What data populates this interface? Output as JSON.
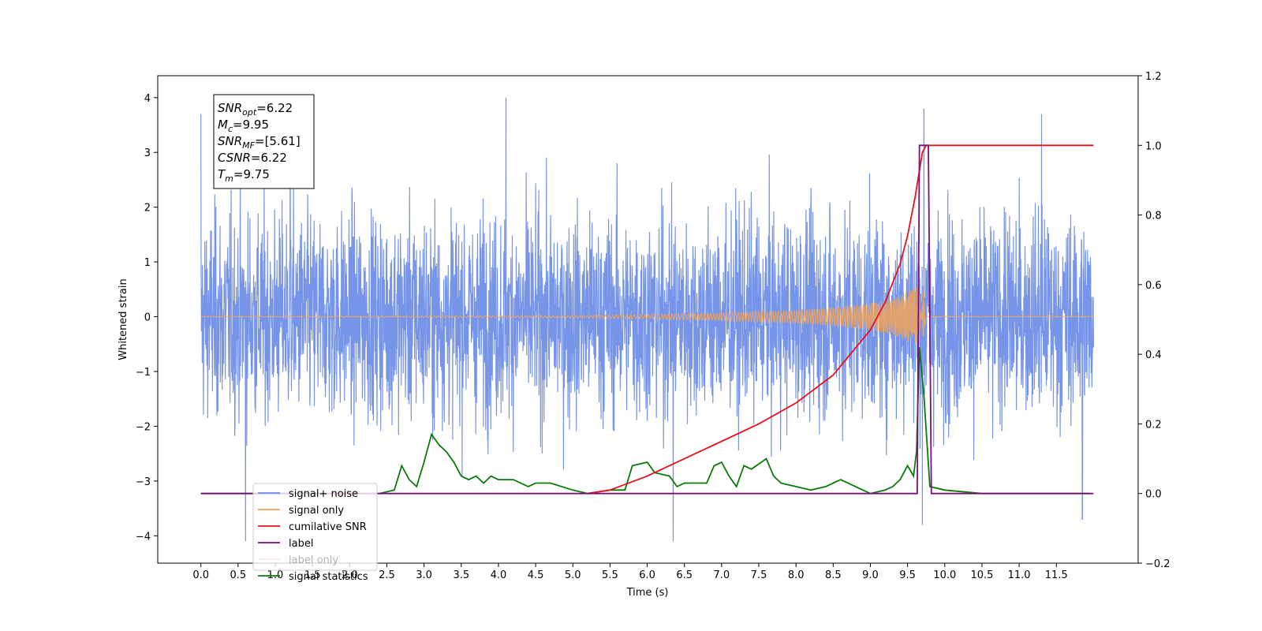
{
  "chart_data": {
    "type": "line",
    "xlabel": "Time (s)",
    "ylabel": "Whitened strain",
    "xlim": [
      -0.58,
      12.6
    ],
    "ylim": [
      -4.5,
      4.4
    ],
    "y2lim": [
      -0.2,
      1.2
    ],
    "x_ticks": [
      0.0,
      0.5,
      1.0,
      1.5,
      2.0,
      2.5,
      3.0,
      3.5,
      4.0,
      4.5,
      5.0,
      5.5,
      6.0,
      6.5,
      7.0,
      7.5,
      8.0,
      8.5,
      9.0,
      9.5,
      10.0,
      10.5,
      11.0,
      11.5
    ],
    "x_tick_labels": [
      "0.0",
      "0.5",
      "1.0",
      "1.5",
      "2.0",
      "2.5",
      "3.0",
      "3.5",
      "4.0",
      "4.5",
      "5.0",
      "5.5",
      "6.0",
      "6.5",
      "7.0",
      "7.5",
      "8.0",
      "8.5",
      "9.0",
      "9.5",
      "10.0",
      "10.5",
      "11.0",
      "11.5"
    ],
    "y_ticks": [
      -4,
      -3,
      -2,
      -1,
      0,
      1,
      2,
      3,
      4
    ],
    "y_tick_labels": [
      "−4",
      "−3",
      "−2",
      "−1",
      "0",
      "1",
      "2",
      "3",
      "4"
    ],
    "y2_ticks": [
      -0.2,
      0.0,
      0.2,
      0.4,
      0.6,
      0.8,
      1.0,
      1.2
    ],
    "y2_tick_labels": [
      "−0.2",
      "0.0",
      "0.2",
      "0.4",
      "0.6",
      "0.8",
      "1.0",
      "1.2"
    ],
    "grid": false,
    "legend_position": "bottom-left",
    "series": [
      {
        "name": "signal+ noise",
        "axis": "left",
        "color": "#6b8ce6",
        "kind": "noise",
        "x_range": [
          0.0,
          12.0
        ],
        "amplitude_typical": 2.1,
        "peaks": [
          [
            0.0,
            3.7
          ],
          [
            0.6,
            -4.1
          ],
          [
            1.2,
            3.6
          ],
          [
            4.1,
            4.0
          ],
          [
            6.35,
            -4.1
          ],
          [
            9.72,
            3.8
          ],
          [
            9.7,
            -3.8
          ],
          [
            11.3,
            3.7
          ],
          [
            11.85,
            -3.7
          ]
        ]
      },
      {
        "name": "signal only",
        "axis": "left",
        "color": "#f0a35a",
        "kind": "chirp",
        "x": [
          0.0,
          5.0,
          6.0,
          7.0,
          8.0,
          8.5,
          9.0,
          9.3,
          9.5,
          9.6,
          9.7,
          9.75
        ],
        "envelope": [
          0.0,
          0.02,
          0.04,
          0.07,
          0.12,
          0.17,
          0.25,
          0.34,
          0.45,
          0.52,
          0.58,
          0.0
        ]
      },
      {
        "name": "cumilative SNR",
        "axis": "right",
        "color": "#e8111b",
        "x": [
          5.2,
          5.5,
          6.0,
          6.5,
          7.0,
          7.5,
          8.0,
          8.5,
          9.0,
          9.2,
          9.4,
          9.5,
          9.6,
          9.7,
          9.75,
          9.8,
          10.5,
          11.0,
          11.5,
          12.0
        ],
        "values": [
          0.0,
          0.01,
          0.05,
          0.1,
          0.15,
          0.2,
          0.26,
          0.34,
          0.47,
          0.55,
          0.66,
          0.74,
          0.85,
          0.98,
          1.0,
          1.0,
          1.0,
          1.0,
          1.0,
          1.0
        ]
      },
      {
        "name": "label",
        "axis": "right",
        "color": "#7b0f7b",
        "x": [
          0.0,
          9.63,
          9.66,
          9.78,
          9.82,
          12.0
        ],
        "values": [
          0.0,
          0.0,
          1.0,
          1.0,
          0.0,
          0.0
        ]
      },
      {
        "name": "label only",
        "axis": "right",
        "color": "#e6a3c4",
        "hidden": true
      },
      {
        "name": "signal statistics",
        "axis": "right",
        "color": "#0a7a0a",
        "x": [
          0.0,
          2.0,
          2.4,
          2.6,
          2.7,
          2.8,
          2.9,
          3.0,
          3.1,
          3.2,
          3.3,
          3.4,
          3.5,
          3.6,
          3.7,
          3.8,
          3.9,
          4.0,
          4.2,
          4.4,
          4.5,
          4.7,
          5.0,
          5.2,
          5.5,
          5.7,
          5.8,
          6.0,
          6.1,
          6.3,
          6.4,
          6.5,
          6.8,
          6.9,
          7.0,
          7.1,
          7.2,
          7.3,
          7.4,
          7.6,
          7.7,
          7.8,
          8.0,
          8.2,
          8.4,
          8.5,
          8.6,
          8.8,
          9.0,
          9.2,
          9.3,
          9.4,
          9.5,
          9.58,
          9.62,
          9.66,
          9.72,
          9.8,
          10.0,
          10.5,
          11.95
        ],
        "values": [
          0.0,
          0.0,
          0.0,
          0.01,
          0.08,
          0.04,
          0.02,
          0.09,
          0.17,
          0.14,
          0.12,
          0.09,
          0.05,
          0.04,
          0.05,
          0.03,
          0.05,
          0.04,
          0.04,
          0.02,
          0.03,
          0.03,
          0.01,
          0.0,
          0.01,
          0.01,
          0.08,
          0.09,
          0.06,
          0.05,
          0.02,
          0.03,
          0.03,
          0.08,
          0.09,
          0.05,
          0.02,
          0.08,
          0.07,
          0.1,
          0.05,
          0.03,
          0.02,
          0.01,
          0.02,
          0.03,
          0.04,
          0.02,
          0.0,
          0.01,
          0.02,
          0.04,
          0.08,
          0.05,
          0.12,
          0.42,
          0.28,
          0.02,
          0.01,
          0.0,
          0.0
        ]
      }
    ],
    "annotation": {
      "lines": [
        {
          "base": "SNR",
          "sub": "opt",
          "rest": "=6.22"
        },
        {
          "base": "M",
          "sub": "c",
          "rest": "=9.95"
        },
        {
          "base": "SNR",
          "sub": "MF",
          "rest": "=[5.61]"
        },
        {
          "base": "CSNR",
          "sub": "",
          "rest": "=6.22"
        },
        {
          "base": "T",
          "sub": "m",
          "rest": "=9.75"
        }
      ]
    }
  }
}
